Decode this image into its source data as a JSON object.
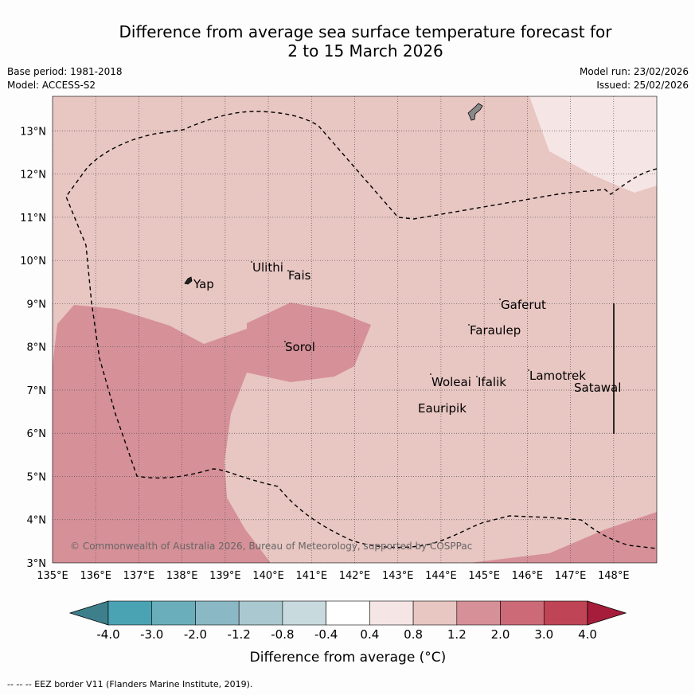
{
  "title": {
    "line1": "Difference from average sea surface temperature forecast for",
    "line2": "2 to 15 March 2026"
  },
  "meta": {
    "base_period": "Base period: 1981-2018",
    "model": "Model: ACCESS-S2",
    "model_run": "Model run: 23/02/2026",
    "issued": "Issued: 25/02/2026"
  },
  "map": {
    "lon_range": [
      135,
      149
    ],
    "lat_range": [
      3,
      13.8
    ],
    "lon_ticks": [
      "135°E",
      "136°E",
      "137°E",
      "138°E",
      "139°E",
      "140°E",
      "141°E",
      "142°E",
      "143°E",
      "144°E",
      "145°E",
      "146°E",
      "147°E",
      "148°E"
    ],
    "lat_ticks": [
      "3°N",
      "4°N",
      "5°N",
      "6°N",
      "7°N",
      "8°N",
      "9°N",
      "10°N",
      "11°N",
      "12°N",
      "13°N"
    ],
    "places": [
      "Ulithi",
      "Fais",
      "Yap",
      "Gaferut",
      "Faraulep",
      "Sorol",
      "Lamotrek",
      "Woleai",
      "Ifalik",
      "Satawal",
      "Eauripik"
    ],
    "copyright": "© Commonwealth of Australia 2026, Bureau of Meteorology, supported by COSPPac"
  },
  "colorbar": {
    "labels": [
      "-4.0",
      "-3.0",
      "-2.0",
      "-1.2",
      "-0.8",
      "-0.4",
      "0.4",
      "0.8",
      "1.2",
      "2.0",
      "3.0",
      "4.0"
    ],
    "colors": [
      "#3e7f8c",
      "#4aa3b3",
      "#6aaebb",
      "#8ab8c4",
      "#aac8cf",
      "#c8dadd",
      "#ffffff",
      "#f5e6e5",
      "#e8c6c2",
      "#d69098",
      "#cc6a78",
      "#be4456",
      "#a51d3a"
    ],
    "title": "Difference from average (°C)"
  },
  "footnote": "-- -- -- EEZ border V11 (Flanders Marine Institute, 2019)."
}
